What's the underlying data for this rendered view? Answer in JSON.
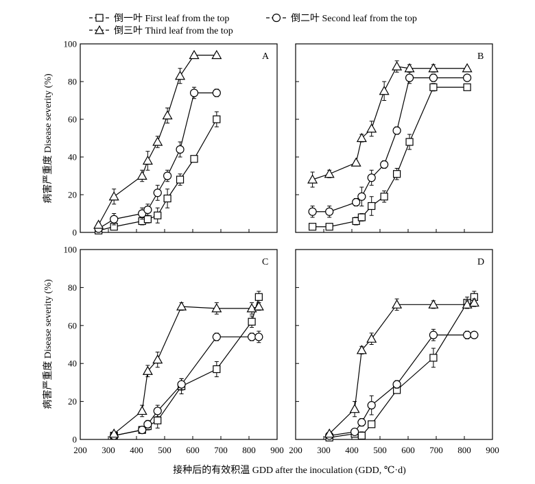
{
  "legend": {
    "items": [
      {
        "key": "first",
        "label": "倒一叶 First leaf from the top"
      },
      {
        "key": "second",
        "label": "倒二叶 Second leaf from the top"
      },
      {
        "key": "third",
        "label": "倒三叶 Third leaf from the top"
      }
    ]
  },
  "axis_titles": {
    "y": "病害严重度 Disease severity (%)",
    "x": "接种后的有效积温 GDD after the inoculation  (GDD, ℃·d)"
  },
  "chart_data": [
    {
      "type": "line",
      "panel": "A",
      "title": "A",
      "xlabel": "接种后的有效积温 GDD after the inoculation  (GDD, ℃·d)",
      "ylabel": "病害严重度 Disease severity (%)",
      "xlim": [
        200,
        900
      ],
      "ylim": [
        0,
        100
      ],
      "x_ticks": [],
      "y_ticks": [
        0,
        20,
        40,
        60,
        80,
        100
      ],
      "series": [
        {
          "name": "倒一叶 First leaf from the top",
          "marker": "square",
          "x": [
            265,
            320,
            420,
            440,
            475,
            510,
            555,
            605,
            685
          ],
          "y": [
            1,
            3,
            6,
            7,
            9,
            18,
            28,
            39,
            60
          ],
          "err": [
            0.5,
            1,
            2,
            2,
            4,
            5,
            3,
            1,
            4
          ]
        },
        {
          "name": "倒二叶 Second leaf from the top",
          "marker": "circle",
          "x": [
            265,
            320,
            420,
            440,
            475,
            510,
            555,
            605,
            685
          ],
          "y": [
            2,
            7,
            10,
            12,
            21,
            30,
            44,
            74,
            74
          ],
          "err": [
            0.5,
            3,
            3,
            3,
            4,
            3,
            4,
            3,
            2
          ]
        },
        {
          "name": "倒三叶 Third leaf from the top",
          "marker": "triangle",
          "x": [
            265,
            320,
            420,
            440,
            475,
            510,
            555,
            605,
            685
          ],
          "y": [
            4,
            19,
            30,
            38,
            48,
            62,
            83,
            94,
            94
          ],
          "err": [
            1,
            4,
            3,
            5,
            3,
            4,
            4,
            1,
            1
          ]
        }
      ]
    },
    {
      "type": "line",
      "panel": "B",
      "title": "B",
      "xlabel": "接种后的有效积温 GDD after the inoculation  (GDD, ℃·d)",
      "ylabel": "",
      "xlim": [
        200,
        900
      ],
      "ylim": [
        0,
        100
      ],
      "x_ticks": [],
      "y_ticks": [],
      "series": [
        {
          "name": "倒一叶 First leaf from the top",
          "marker": "square",
          "x": [
            260,
            320,
            415,
            435,
            470,
            515,
            560,
            605,
            690,
            810
          ],
          "y": [
            3,
            3,
            6,
            8,
            14,
            19,
            31,
            48,
            77,
            77
          ],
          "err": [
            0.5,
            0.5,
            2,
            2,
            5,
            3,
            3,
            4,
            2,
            1
          ]
        },
        {
          "name": "倒二叶 Second leaf from the top",
          "marker": "circle",
          "x": [
            260,
            320,
            415,
            435,
            470,
            515,
            560,
            605,
            690,
            810
          ],
          "y": [
            11,
            11,
            16,
            19,
            29,
            36,
            54,
            82,
            82,
            82
          ],
          "err": [
            3,
            3,
            2,
            5,
            4,
            2,
            2,
            3,
            2,
            1
          ]
        },
        {
          "name": "倒三叶 Third leaf from the top",
          "marker": "triangle",
          "x": [
            260,
            320,
            415,
            435,
            470,
            515,
            560,
            605,
            690,
            810
          ],
          "y": [
            28,
            31,
            37,
            50,
            55,
            75,
            88,
            87,
            87,
            87
          ],
          "err": [
            4,
            2,
            1,
            2,
            4,
            5,
            3,
            2,
            2,
            1
          ]
        }
      ]
    },
    {
      "type": "line",
      "panel": "C",
      "title": "C",
      "xlabel": "接种后的有效积温 GDD after the inoculation  (GDD, ℃·d)",
      "ylabel": "病害严重度 Disease severity (%)",
      "xlim": [
        200,
        900
      ],
      "ylim": [
        0,
        100
      ],
      "x_ticks": [
        200,
        300,
        400,
        500,
        600,
        700,
        800,
        900
      ],
      "y_ticks": [
        0,
        20,
        40,
        60,
        80,
        100
      ],
      "series": [
        {
          "name": "倒一叶 First leaf from the top",
          "marker": "square",
          "x": [
            320,
            420,
            440,
            475,
            560,
            685,
            810,
            835
          ],
          "y": [
            2,
            5,
            7,
            10,
            28,
            37,
            62,
            75
          ],
          "err": [
            0.5,
            1,
            2,
            4,
            4,
            4,
            3,
            3
          ]
        },
        {
          "name": "倒二叶 Second leaf from the top",
          "marker": "circle",
          "x": [
            320,
            420,
            440,
            475,
            560,
            685,
            810,
            835
          ],
          "y": [
            2,
            5,
            8,
            15,
            29,
            54,
            54,
            54
          ],
          "err": [
            0.5,
            1,
            2,
            3,
            3,
            2,
            2,
            3
          ]
        },
        {
          "name": "倒三叶 Third leaf from the top",
          "marker": "triangle",
          "x": [
            320,
            420,
            440,
            475,
            560,
            685,
            810,
            835
          ],
          "y": [
            3,
            15,
            36,
            42,
            70,
            69,
            69,
            70
          ],
          "err": [
            0.5,
            3,
            3,
            4,
            2,
            3,
            3,
            2
          ]
        }
      ]
    },
    {
      "type": "line",
      "panel": "D",
      "title": "D",
      "xlabel": "接种后的有效积温 GDD after the inoculation  (GDD, ℃·d)",
      "ylabel": "",
      "xlim": [
        200,
        900
      ],
      "ylim": [
        0,
        100
      ],
      "x_ticks": [
        200,
        300,
        400,
        500,
        600,
        700,
        800,
        900
      ],
      "y_ticks": [],
      "series": [
        {
          "name": "倒一叶 First leaf from the top",
          "marker": "square",
          "x": [
            320,
            410,
            435,
            470,
            560,
            690,
            810,
            835
          ],
          "y": [
            1,
            3,
            2,
            8,
            26,
            43,
            72,
            75
          ],
          "err": [
            0.5,
            1,
            2,
            1,
            1,
            5,
            3,
            3
          ]
        },
        {
          "name": "倒二叶 Second leaf from the top",
          "marker": "circle",
          "x": [
            320,
            410,
            435,
            470,
            560,
            690,
            810,
            835
          ],
          "y": [
            2,
            4,
            9,
            18,
            29,
            55,
            55,
            55
          ],
          "err": [
            0.5,
            1,
            2,
            5,
            2,
            3,
            2,
            1
          ]
        },
        {
          "name": "倒三叶 Third leaf from the top",
          "marker": "triangle",
          "x": [
            320,
            410,
            435,
            470,
            560,
            690,
            810,
            835
          ],
          "y": [
            3,
            16,
            47,
            53,
            71,
            71,
            71,
            72
          ],
          "err": [
            0.5,
            4,
            2,
            3,
            3,
            2,
            2,
            2
          ]
        }
      ]
    }
  ]
}
